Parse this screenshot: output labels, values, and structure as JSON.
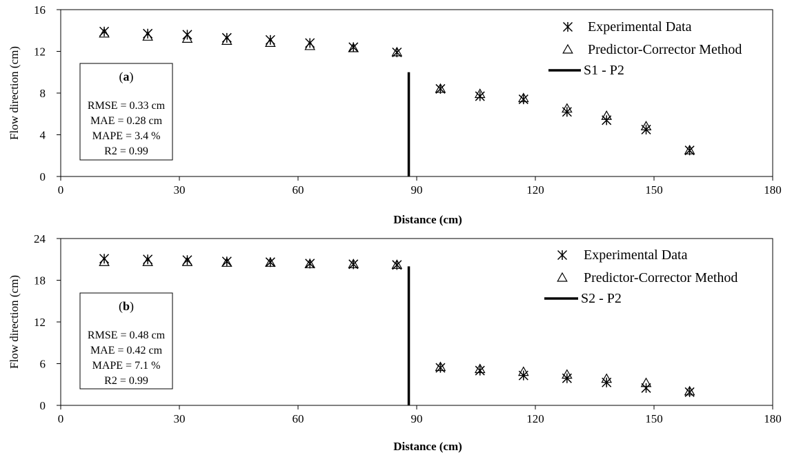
{
  "chart_data": [
    {
      "type": "scatter",
      "panel_label": "a",
      "xlabel": "Distance (cm)",
      "ylabel": "Flow direction (cm)",
      "xlim": [
        0,
        180
      ],
      "ylim": [
        0,
        16
      ],
      "x_ticks": [
        0,
        30,
        60,
        90,
        120,
        150,
        180
      ],
      "y_ticks": [
        0,
        4,
        8,
        12,
        16
      ],
      "grid": false,
      "legend_position": "top-right",
      "series": [
        {
          "name": "Experimental Data",
          "marker": "asterisk",
          "points": [
            [
              11,
              13.9
            ],
            [
              22,
              13.7
            ],
            [
              32,
              13.6
            ],
            [
              42,
              13.3
            ],
            [
              53,
              13.1
            ],
            [
              63,
              12.8
            ],
            [
              74,
              12.4
            ],
            [
              85,
              11.9
            ],
            [
              96,
              8.4
            ],
            [
              106,
              7.7
            ],
            [
              117,
              7.4
            ],
            [
              128,
              6.2
            ],
            [
              138,
              5.4
            ],
            [
              148,
              4.5
            ],
            [
              159,
              2.5
            ]
          ]
        },
        {
          "name": "Predictor-Corrector Method",
          "marker": "triangle",
          "points": [
            [
              11,
              13.7
            ],
            [
              22,
              13.4
            ],
            [
              32,
              13.2
            ],
            [
              42,
              13.0
            ],
            [
              53,
              12.8
            ],
            [
              63,
              12.5
            ],
            [
              74,
              12.3
            ],
            [
              85,
              11.9
            ],
            [
              96,
              8.4
            ],
            [
              106,
              7.9
            ],
            [
              117,
              7.5
            ],
            [
              128,
              6.5
            ],
            [
              138,
              5.8
            ],
            [
              148,
              4.8
            ],
            [
              159,
              2.5
            ]
          ]
        }
      ],
      "divider": {
        "name": "S1 - P2",
        "x": 88,
        "y_range": [
          0,
          10
        ]
      },
      "stats": [
        "RMSE = 0.33 cm",
        "MAE = 0.28 cm",
        "MAPE = 3.4 %",
        "R2 = 0.99"
      ]
    },
    {
      "type": "scatter",
      "panel_label": "b",
      "xlabel": "Distance (cm)",
      "ylabel": "Flow direction (cm)",
      "xlim": [
        0,
        180
      ],
      "ylim": [
        0,
        24
      ],
      "x_ticks": [
        0,
        30,
        60,
        90,
        120,
        150,
        180
      ],
      "y_ticks": [
        0,
        6,
        12,
        18,
        24
      ],
      "grid": false,
      "legend_position": "top-right",
      "series": [
        {
          "name": "Experimental Data",
          "marker": "asterisk",
          "points": [
            [
              11,
              21.1
            ],
            [
              22,
              21.0
            ],
            [
              32,
              20.9
            ],
            [
              42,
              20.7
            ],
            [
              53,
              20.6
            ],
            [
              63,
              20.4
            ],
            [
              74,
              20.3
            ],
            [
              85,
              20.2
            ],
            [
              96,
              5.4
            ],
            [
              106,
              5.0
            ],
            [
              117,
              4.3
            ],
            [
              128,
              3.9
            ],
            [
              138,
              3.3
            ],
            [
              148,
              2.5
            ],
            [
              159,
              1.9
            ]
          ]
        },
        {
          "name": "Predictor-Corrector Method",
          "marker": "triangle",
          "points": [
            [
              11,
              20.6
            ],
            [
              22,
              20.6
            ],
            [
              32,
              20.6
            ],
            [
              42,
              20.5
            ],
            [
              53,
              20.5
            ],
            [
              63,
              20.3
            ],
            [
              74,
              20.3
            ],
            [
              85,
              20.2
            ],
            [
              96,
              5.5
            ],
            [
              106,
              5.2
            ],
            [
              117,
              4.8
            ],
            [
              128,
              4.4
            ],
            [
              138,
              3.8
            ],
            [
              148,
              3.2
            ],
            [
              159,
              2.0
            ]
          ]
        }
      ],
      "divider": {
        "name": "S2 - P2",
        "x": 88,
        "y_range": [
          0,
          20
        ]
      },
      "stats": [
        "RMSE = 0.48 cm",
        "MAE = 0.42 cm",
        "MAPE = 7.1 %",
        "R2 = 0.99"
      ]
    }
  ]
}
